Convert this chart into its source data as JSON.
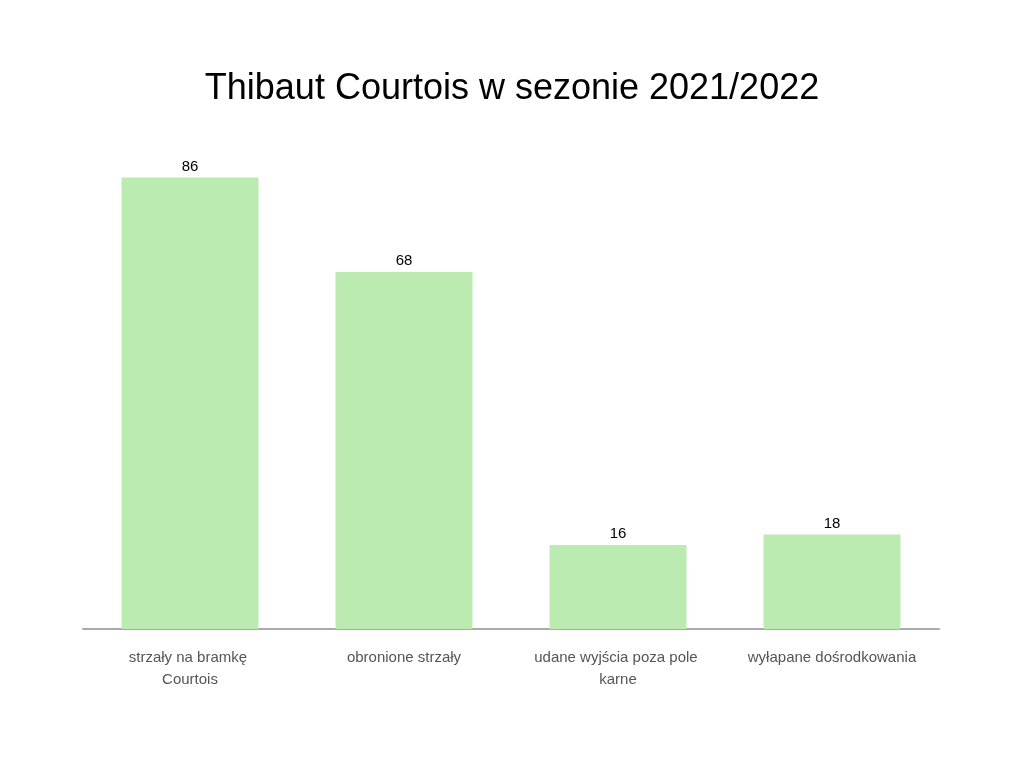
{
  "chart_data": {
    "type": "bar",
    "title": "Thibaut Courtois w sezonie 2021/2022",
    "categories": [
      "strzały na bramkę Courtois",
      "obronione strzały",
      "udane wyjścia poza pole karne",
      "wyłapane dośrodkowania"
    ],
    "values": [
      86,
      68,
      16,
      18
    ],
    "color": "#bbebb0",
    "data_labels": true
  }
}
